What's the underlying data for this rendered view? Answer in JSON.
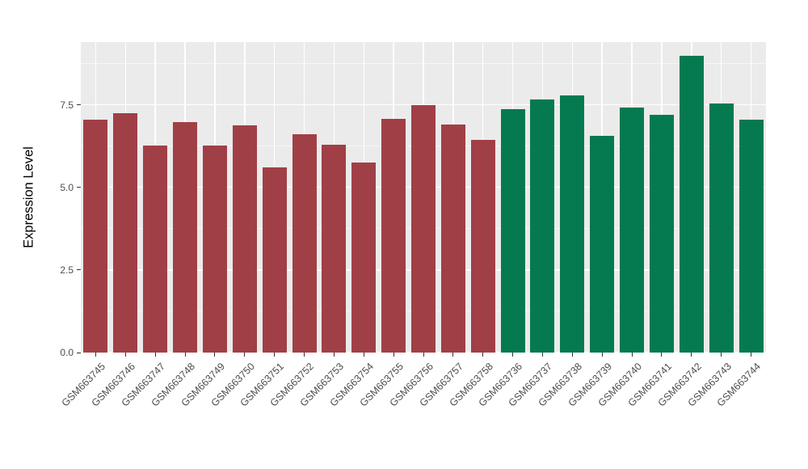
{
  "chart_data": {
    "type": "bar",
    "title": "",
    "xlabel": "",
    "ylabel": "Expression Level",
    "ylim": [
      0,
      9.4
    ],
    "ytick_labels": [
      "0.0",
      "2.5",
      "5.0",
      "7.5"
    ],
    "ytick_values": [
      0,
      2.5,
      5,
      7.5
    ],
    "minor_ticks": [
      1.25,
      3.75,
      6.25,
      8.75
    ],
    "grid": true,
    "legend": "none",
    "panel_background": "#EBEBEB",
    "gridline_color": "#FFFFFF",
    "axis_text_color": "#4D4D4D",
    "categories": [
      "GSM663745",
      "GSM663746",
      "GSM663747",
      "GSM663748",
      "GSM663749",
      "GSM663750",
      "GSM663751",
      "GSM663752",
      "GSM663753",
      "GSM663754",
      "GSM663755",
      "GSM663756",
      "GSM663757",
      "GSM663758",
      "GSM663736",
      "GSM663737",
      "GSM663738",
      "GSM663739",
      "GSM663740",
      "GSM663741",
      "GSM663742",
      "GSM663743",
      "GSM663744"
    ],
    "values": [
      7.05,
      7.25,
      6.27,
      6.98,
      6.27,
      6.88,
      5.6,
      6.6,
      6.3,
      5.75,
      7.08,
      7.5,
      6.9,
      6.43,
      7.38,
      7.65,
      7.78,
      6.55,
      7.42,
      7.2,
      8.98,
      7.55,
      7.05
    ],
    "groups": [
      "maroon",
      "maroon",
      "maroon",
      "maroon",
      "maroon",
      "maroon",
      "maroon",
      "maroon",
      "maroon",
      "maroon",
      "maroon",
      "maroon",
      "maroon",
      "maroon",
      "green",
      "green",
      "green",
      "green",
      "green",
      "green",
      "green",
      "green",
      "green"
    ],
    "palette": {
      "maroon": "#A13F46",
      "green": "#057A50"
    }
  }
}
